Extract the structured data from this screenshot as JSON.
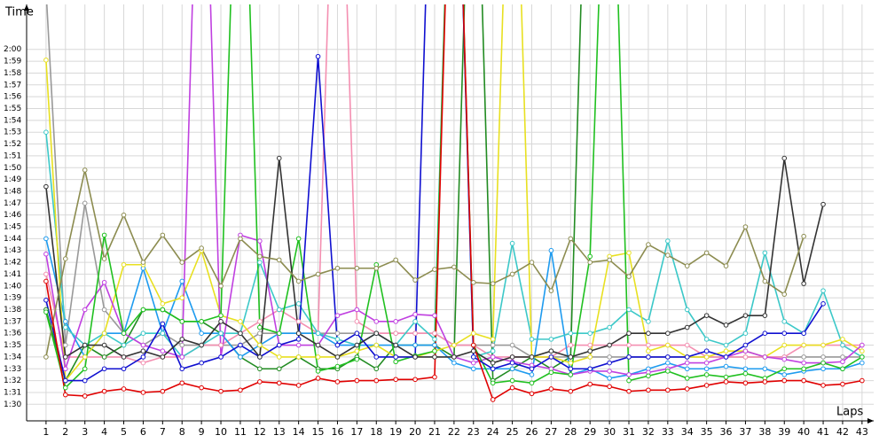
{
  "chart_data": {
    "type": "line",
    "y_label": "Time",
    "x_label": "Laps",
    "grid": true,
    "x": [
      1,
      2,
      3,
      4,
      5,
      6,
      7,
      8,
      9,
      10,
      11,
      12,
      13,
      14,
      15,
      16,
      17,
      18,
      19,
      20,
      21,
      22,
      23,
      24,
      25,
      26,
      27,
      28,
      29,
      30,
      31,
      32,
      33,
      34,
      35,
      36,
      37,
      38,
      39,
      40,
      41,
      42,
      43
    ],
    "xticks": [
      1,
      2,
      3,
      4,
      5,
      6,
      7,
      8,
      9,
      10,
      11,
      12,
      13,
      14,
      15,
      16,
      17,
      18,
      19,
      20,
      21,
      22,
      23,
      24,
      25,
      26,
      27,
      28,
      29,
      30,
      31,
      32,
      33,
      34,
      35,
      36,
      37,
      38,
      39,
      40,
      41,
      42,
      43
    ],
    "xlim": [
      0,
      43.6
    ],
    "ylim": [
      88.6,
      123.8
    ],
    "yticks": [
      {
        "value": 90,
        "label": "1:30"
      },
      {
        "value": 91,
        "label": "1:31"
      },
      {
        "value": 92,
        "label": "1:32"
      },
      {
        "value": 93,
        "label": "1:33"
      },
      {
        "value": 94,
        "label": "1:34"
      },
      {
        "value": 95,
        "label": "1:35"
      },
      {
        "value": 96,
        "label": "1:36"
      },
      {
        "value": 97,
        "label": "1:37"
      },
      {
        "value": 98,
        "label": "1:38"
      },
      {
        "value": 99,
        "label": "1:39"
      },
      {
        "value": 100,
        "label": "1:40"
      },
      {
        "value": 101,
        "label": "1:41"
      },
      {
        "value": 102,
        "label": "1:42"
      },
      {
        "value": 103,
        "label": "1:43"
      },
      {
        "value": 104,
        "label": "1:44"
      },
      {
        "value": 105,
        "label": "1:45"
      },
      {
        "value": 106,
        "label": "1:46"
      },
      {
        "value": 107,
        "label": "1:47"
      },
      {
        "value": 108,
        "label": "1:48"
      },
      {
        "value": 109,
        "label": "1:49"
      },
      {
        "value": 110,
        "label": "1:50"
      },
      {
        "value": 111,
        "label": "1:51"
      },
      {
        "value": 112,
        "label": "1:52"
      },
      {
        "value": 113,
        "label": "1:53"
      },
      {
        "value": 114,
        "label": "1:54"
      },
      {
        "value": 115,
        "label": "1:55"
      },
      {
        "value": 116,
        "label": "1:56"
      },
      {
        "value": 117,
        "label": "1:57"
      },
      {
        "value": 118,
        "label": "1:58"
      },
      {
        "value": 119,
        "label": "1:59"
      },
      {
        "value": 120,
        "label": "2:00"
      }
    ],
    "series": [
      {
        "color": "#999999",
        "values": [
          125,
          95,
          107,
          98,
          96,
          95,
          96,
          95,
          95,
          95,
          95,
          96,
          96,
          96,
          96,
          96,
          96,
          96,
          96,
          96,
          96,
          95,
          95,
          95,
          95,
          94,
          94,
          94,
          94,
          94,
          94,
          94,
          94,
          94,
          94,
          94,
          94,
          94,
          94,
          94,
          94,
          94,
          94
        ]
      },
      {
        "color": "#f48fb1",
        "values": [
          101,
          94,
          94,
          94,
          94,
          93.5,
          94,
          94,
          95,
          95,
          96,
          97,
          98,
          97,
          96,
          150,
          97,
          96,
          96,
          96,
          96,
          95,
          95,
          94,
          94,
          94,
          94,
          95,
          95,
          95,
          95,
          95,
          95,
          95,
          94,
          94,
          94,
          94,
          94,
          95,
          95,
          95,
          95
        ]
      },
      {
        "color": "#228b22",
        "values": [
          98,
          92,
          95,
          94,
          95,
          98,
          98,
          97,
          97,
          96,
          94,
          93,
          93,
          94,
          93,
          93,
          94,
          93,
          95,
          95,
          95,
          94,
          150,
          92,
          93,
          94,
          93,
          94,
          150,
          null,
          null,
          null,
          null,
          null,
          null,
          null,
          null,
          null,
          null,
          null,
          null,
          null,
          null
        ]
      },
      {
        "color": "#1e9bef",
        "values": [
          104,
          97,
          94,
          96,
          96,
          101.5,
          96,
          100.4,
          96,
          96,
          94,
          95,
          96,
          96,
          96,
          95,
          95,
          95,
          95,
          95,
          95,
          93.5,
          93,
          93,
          93,
          92.5,
          103,
          92.5,
          93,
          92.2,
          92.5,
          93,
          93.5,
          93,
          93,
          93.2,
          93,
          93,
          92.5,
          92.8,
          93,
          93,
          93.5
        ]
      },
      {
        "color": "#3cc8c8",
        "values": [
          113,
          96.5,
          95,
          96,
          95,
          96,
          96,
          94,
          95,
          96,
          96,
          102,
          98,
          98.5,
          96,
          95.5,
          95,
          96,
          95,
          97,
          95.5,
          150,
          94,
          94.5,
          103.6,
          95.5,
          95.5,
          96,
          96,
          96.5,
          98,
          97,
          103.8,
          98,
          95.5,
          95,
          96,
          102.8,
          97,
          96,
          99.6,
          95,
          94
        ]
      },
      {
        "color": "#e8e020",
        "values": [
          119.1,
          92,
          94,
          96,
          101.8,
          101.8,
          98.5,
          99,
          103,
          97.5,
          97,
          95,
          94,
          94,
          94,
          94,
          94.5,
          95,
          94,
          94,
          94.5,
          95,
          96,
          95.5,
          150,
          94,
          94,
          93.5,
          94,
          102.5,
          102.8,
          94.5,
          95,
          94,
          94,
          94.5,
          94.5,
          94,
          95,
          95,
          95,
          95.5,
          94.5
        ]
      },
      {
        "color": "#c040e0",
        "values": [
          102.7,
          93,
          98,
          100.3,
          96,
          95,
          94.5,
          94,
          150,
          94,
          104.3,
          103.8,
          95,
          95,
          95,
          97.5,
          98,
          97,
          97,
          97.6,
          97.5,
          94,
          93.5,
          94,
          93.6,
          93.3,
          93,
          92.5,
          92.8,
          92.8,
          92.5,
          92.7,
          93,
          93.5,
          93.5,
          94,
          94.5,
          94,
          93.8,
          93.5,
          93.5,
          93.6,
          95
        ]
      },
      {
        "color": "#20c020",
        "values": [
          97.8,
          91.4,
          93,
          104.3,
          96,
          98,
          98,
          97,
          97,
          97.5,
          150,
          96.5,
          96,
          104,
          92.8,
          93.2,
          93.8,
          101.8,
          93.6,
          94.1,
          94.5,
          150,
          95,
          91.8,
          92,
          91.8,
          92.7,
          92.5,
          102.5,
          150,
          92,
          92.4,
          92.8,
          92.2,
          92.5,
          92.3,
          92.6,
          92.2,
          93,
          93,
          93.5,
          93,
          94
        ]
      },
      {
        "color": "#1010d0",
        "values": [
          98.8,
          92,
          92,
          93,
          93,
          94,
          96.8,
          93,
          93.5,
          94,
          95,
          94,
          95,
          95.5,
          119.4,
          95,
          96,
          94,
          94,
          94,
          150,
          150,
          94,
          93,
          93.5,
          93,
          94,
          93,
          93,
          93.5,
          94,
          94,
          94,
          94,
          94.5,
          94,
          95,
          96,
          96,
          96,
          98.5,
          null,
          null
        ]
      },
      {
        "color": "#333333",
        "values": [
          108.4,
          94,
          95,
          95,
          94,
          94.5,
          94,
          95.5,
          95,
          97,
          96,
          94,
          110.8,
          96,
          95,
          94,
          95,
          96,
          95,
          94,
          94,
          94,
          94.5,
          93.5,
          94,
          94,
          94.5,
          94,
          94.5,
          95,
          96,
          96,
          96,
          96.5,
          97.5,
          96.7,
          97.5,
          97.5,
          110.8,
          100.2,
          106.9,
          null,
          null
        ]
      },
      {
        "color": "#8c8c50",
        "values": [
          94,
          102.3,
          109.8,
          102.3,
          106,
          102,
          104.3,
          102,
          103.2,
          100,
          104,
          102.5,
          102.2,
          100.4,
          101,
          101.5,
          101.5,
          101.5,
          102.2,
          100.5,
          101.4,
          101.6,
          100.3,
          100.2,
          101,
          102,
          99.6,
          104,
          102,
          102.2,
          100.8,
          103.5,
          102.6,
          101.7,
          102.8,
          101.7,
          105,
          100.4,
          99.3,
          104.2,
          null,
          null,
          null
        ]
      },
      {
        "color": "#e00000",
        "values": [
          100.4,
          90.8,
          90.7,
          91.1,
          91.3,
          91,
          91.1,
          91.8,
          91.4,
          91.1,
          91.2,
          91.9,
          91.8,
          91.6,
          92.2,
          91.9,
          92,
          92,
          92.1,
          92.1,
          92.3,
          150,
          95,
          90.4,
          91.4,
          90.9,
          91.3,
          91.1,
          91.7,
          91.5,
          91.1,
          91.2,
          91.2,
          91.3,
          91.6,
          91.9,
          91.8,
          91.9,
          92,
          92,
          91.6,
          91.7,
          92
        ]
      }
    ]
  }
}
